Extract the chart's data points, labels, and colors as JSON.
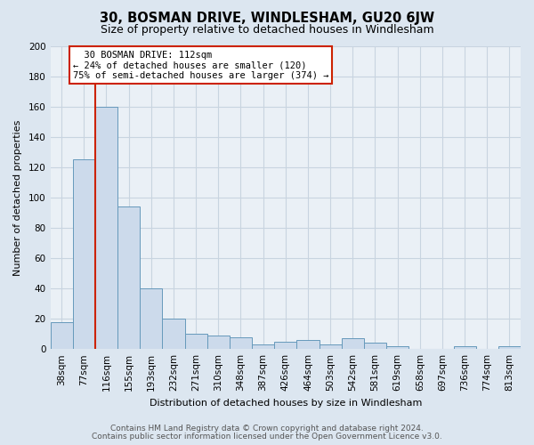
{
  "title": "30, BOSMAN DRIVE, WINDLESHAM, GU20 6JW",
  "subtitle": "Size of property relative to detached houses in Windlesham",
  "xlabel": "Distribution of detached houses by size in Windlesham",
  "ylabel": "Number of detached properties",
  "footer_line1": "Contains HM Land Registry data © Crown copyright and database right 2024.",
  "footer_line2": "Contains public sector information licensed under the Open Government Licence v3.0.",
  "bin_labels": [
    "38sqm",
    "77sqm",
    "116sqm",
    "155sqm",
    "193sqm",
    "232sqm",
    "271sqm",
    "310sqm",
    "348sqm",
    "387sqm",
    "426sqm",
    "464sqm",
    "503sqm",
    "542sqm",
    "581sqm",
    "619sqm",
    "658sqm",
    "697sqm",
    "736sqm",
    "774sqm",
    "813sqm"
  ],
  "bar_values": [
    18,
    125,
    160,
    94,
    40,
    20,
    10,
    9,
    8,
    3,
    5,
    6,
    3,
    7,
    4,
    2,
    0,
    0,
    2,
    0,
    2
  ],
  "bar_color": "#ccdaeb",
  "bar_edge_color": "#6699bb",
  "highlight_bin": 2,
  "highlight_color": "#cc2200",
  "annotation_line1": "  30 BOSMAN DRIVE: 112sqm",
  "annotation_line2": "← 24% of detached houses are smaller (120)",
  "annotation_line3": "75% of semi-detached houses are larger (374) →",
  "annotation_box_color": "#cc2200",
  "ylim": [
    0,
    200
  ],
  "yticks": [
    0,
    20,
    40,
    60,
    80,
    100,
    120,
    140,
    160,
    180,
    200
  ],
  "grid_color": "#c8d4e0",
  "bg_color": "#dce6f0",
  "plot_bg_color": "#eaf0f6",
  "title_fontsize": 10.5,
  "subtitle_fontsize": 9,
  "label_fontsize": 8,
  "tick_fontsize": 7.5,
  "footer_fontsize": 6.5
}
